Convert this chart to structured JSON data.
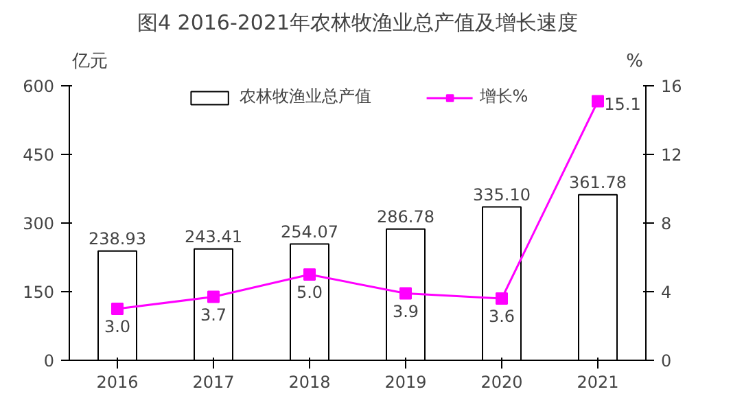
{
  "chart_data": {
    "type": "bar",
    "title": "图4 2016-2021年农林牧渔业总产值及增长速度",
    "categories": [
      "2016",
      "2017",
      "2018",
      "2019",
      "2020",
      "2021"
    ],
    "series": [
      {
        "name": "农林牧渔业总产值",
        "color": "#ffffff",
        "values": [
          238.93,
          243.41,
          254.07,
          286.78,
          335.1,
          361.78
        ],
        "value_labels": [
          "238.93",
          "243.41",
          "254.07",
          "286.78",
          "335.10",
          "361.78"
        ]
      },
      {
        "name": "增长%",
        "type": "line",
        "axis": "y2",
        "color": "#ff00ff",
        "marker": "square",
        "values": [
          3.0,
          3.7,
          5.0,
          3.9,
          3.6,
          15.1
        ],
        "value_labels": [
          "3.0",
          "3.7",
          "5.0",
          "3.9",
          "3.6",
          "15.1"
        ]
      }
    ],
    "ylabel": "亿元",
    "y2label": "%",
    "ylim": [
      0,
      600
    ],
    "yticks": [
      0,
      150,
      300,
      450,
      600
    ],
    "y2lim": [
      0,
      16
    ],
    "y2ticks": [
      0,
      4,
      8,
      12,
      16
    ],
    "grid": false,
    "legend": "top"
  }
}
